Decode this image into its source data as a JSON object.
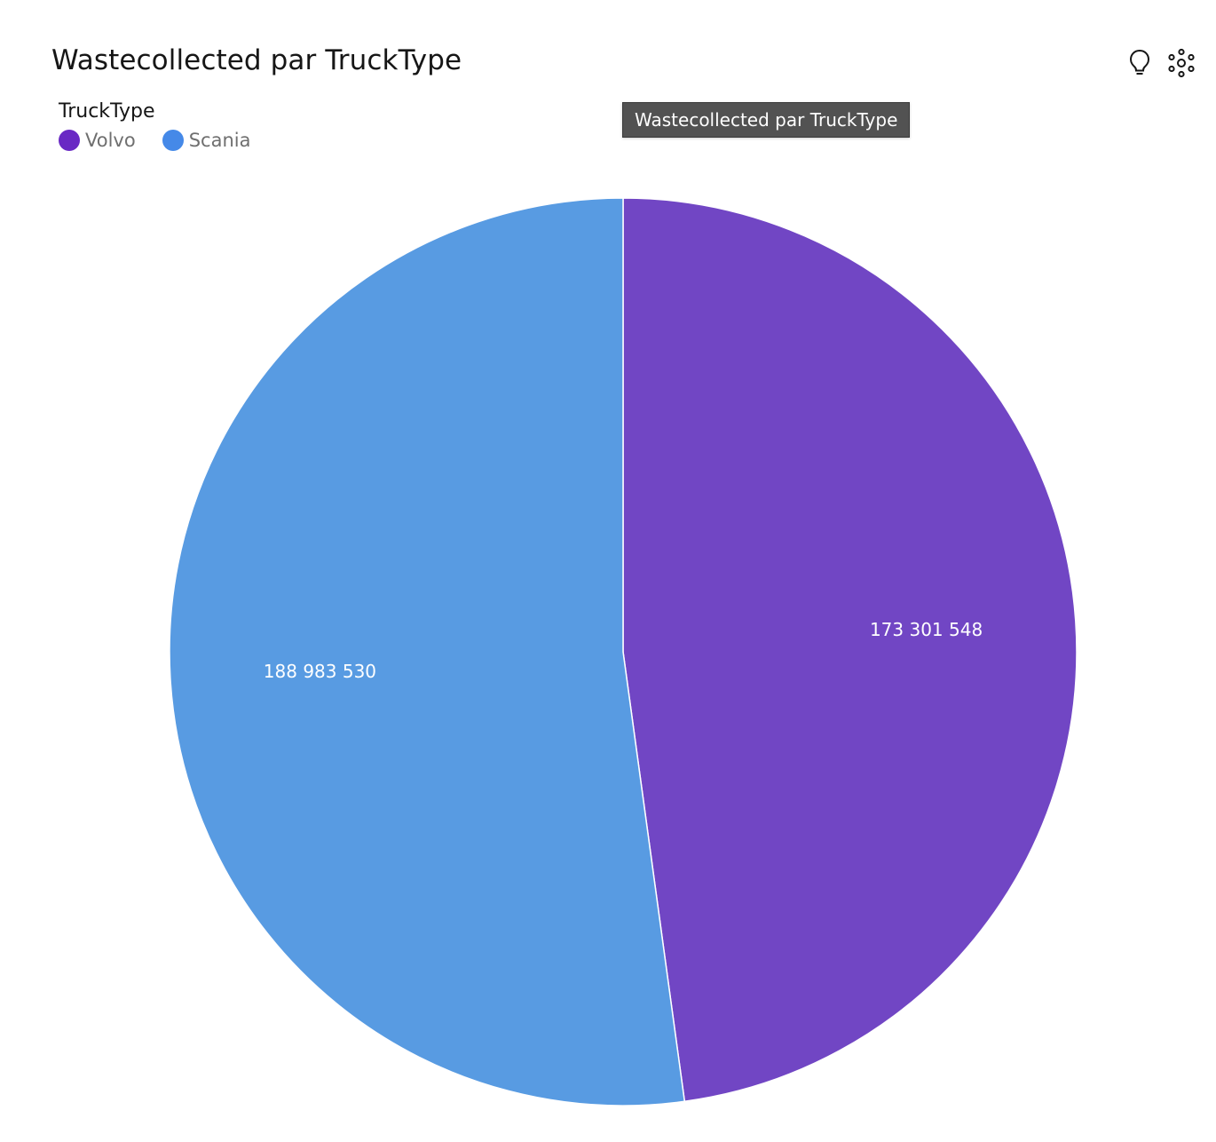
{
  "header": {
    "title": "Wastecollected par TruckType"
  },
  "toolbar": {
    "insights_icon": "lightbulb-icon",
    "settings_icon": "cluster-icon"
  },
  "legend": {
    "title": "TruckType",
    "items": [
      {
        "label": "Volvo",
        "color": "#6929c4"
      },
      {
        "label": "Scania",
        "color": "#4589e8"
      }
    ]
  },
  "tooltip": {
    "text": "Wastecollected par TruckType"
  },
  "chart_data": {
    "type": "pie",
    "title": "Wastecollected par TruckType",
    "legend_title": "TruckType",
    "legend_position": "top-left",
    "slices": [
      {
        "label": "Volvo",
        "value": 173301548,
        "display": "173 301 548",
        "color": "#7146c4"
      },
      {
        "label": "Scania",
        "value": 188983530,
        "display": "188 983 530",
        "color": "#589be2"
      }
    ]
  }
}
